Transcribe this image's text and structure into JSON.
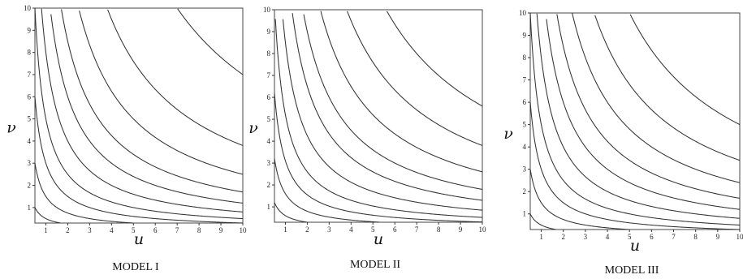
{
  "chart_data": [
    {
      "type": "contour",
      "caption": "MODEL I",
      "xlabel": "u",
      "ylabel": "ν",
      "xlim": [
        0.5,
        10
      ],
      "ylim": [
        0.3,
        10
      ],
      "xticks": [
        1,
        2,
        3,
        4,
        5,
        6,
        7,
        8,
        9,
        10
      ],
      "yticks": [
        1,
        2,
        3,
        4,
        5,
        6,
        7,
        8,
        9,
        10
      ],
      "contour_levels": [
        0.5,
        1.5,
        3,
        5,
        8,
        12,
        17,
        25,
        38,
        70
      ],
      "grid": false
    },
    {
      "type": "contour",
      "caption": "MODEL II",
      "xlabel": "u",
      "ylabel": "ν",
      "xlim": [
        0.5,
        10
      ],
      "ylim": [
        0.3,
        10
      ],
      "xticks": [
        1,
        2,
        3,
        4,
        5,
        6,
        7,
        8,
        9,
        10
      ],
      "yticks": [
        1,
        2,
        3,
        4,
        5,
        6,
        7,
        8,
        9,
        10
      ],
      "contour_levels": [
        0.6,
        1.6,
        3.1,
        5.2,
        8.5,
        13,
        18,
        26,
        38,
        56
      ],
      "grid": false
    },
    {
      "type": "contour",
      "caption": "MODEL III",
      "xlabel": "u",
      "ylabel": "ν",
      "xlim": [
        0.5,
        10
      ],
      "ylim": [
        0.3,
        10
      ],
      "xticks": [
        1,
        2,
        3,
        4,
        5,
        6,
        7,
        8,
        9,
        10
      ],
      "yticks": [
        1,
        2,
        3,
        4,
        5,
        6,
        7,
        8,
        9,
        10
      ],
      "contour_levels": [
        0.5,
        1.5,
        3,
        5,
        8,
        12,
        17,
        24,
        34,
        50
      ],
      "grid": false
    }
  ]
}
